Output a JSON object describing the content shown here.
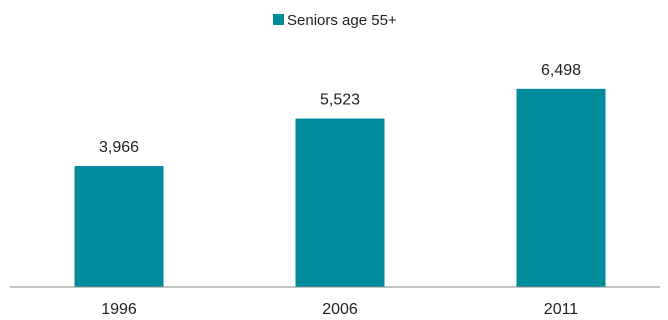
{
  "chart_data": {
    "type": "bar",
    "categories": [
      "1996",
      "2006",
      "2011"
    ],
    "series": [
      {
        "name": "Seniors age 55+",
        "values": [
          3966,
          5523,
          6498
        ],
        "data_labels": [
          "3,966",
          "5,523",
          "6,498"
        ]
      }
    ],
    "ylim": [
      0,
      8100
    ],
    "legend_position": "top",
    "grid": false,
    "colors": {
      "bar": "#008b9a",
      "axis": "#888888",
      "text": "#222222"
    }
  }
}
